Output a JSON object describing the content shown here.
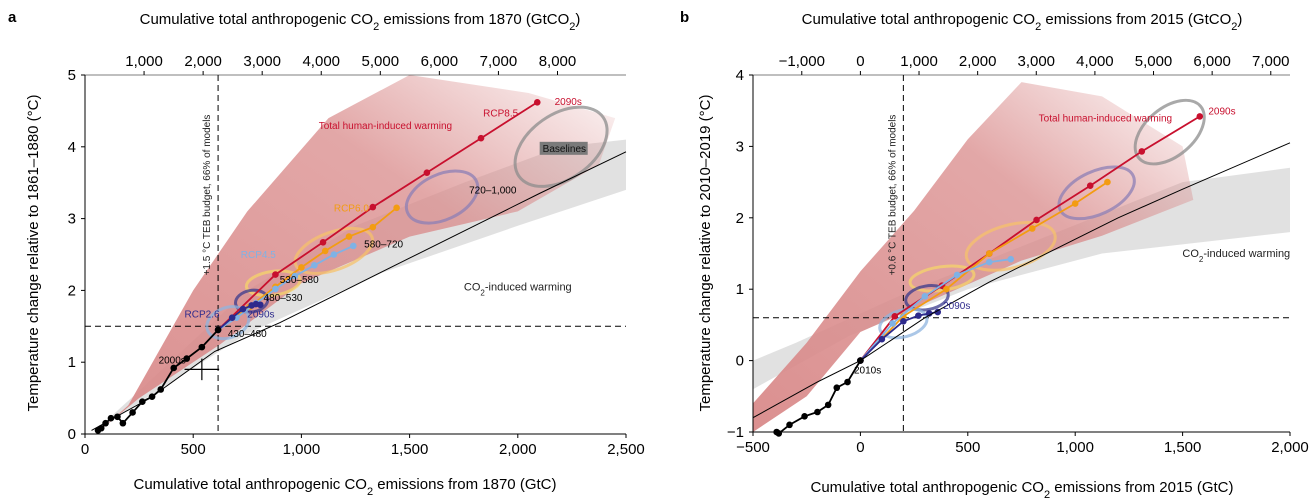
{
  "colors": {
    "rcp85": "#c8102e",
    "rcp60": "#f39c12",
    "rcp45": "#7fb2e5",
    "rcp26": "#2e2a8c",
    "hist": "#000000",
    "human_band": "#d98a8a",
    "co2_band": "#d9d9d9",
    "baseline_ellipse": "#8c8c8c",
    "ellipse_720_1000": "#8c7fb5",
    "ellipse_580_720": "#f5c26b",
    "ellipse_530_580": "#f6d46a",
    "ellipse_480_530": "#3a3a8c",
    "ellipse_430_480": "#8fb4df"
  },
  "chart_data": [
    {
      "type": "line",
      "panel": "a",
      "xlabel_top": "Cumulative total anthropogenic CO2 emissions from 1870 (GtCO2)",
      "xlabel_bottom": "Cumulative total anthropogenic CO2 emissions from 1870 (GtC)",
      "ylabel": "Temperature change relative to 1861–1880 (°C)",
      "xlim": [
        0,
        2500
      ],
      "ylim": [
        0,
        5
      ],
      "x_ticks": [
        0,
        500,
        1000,
        1500,
        2000,
        2500
      ],
      "x_tick_labels": [
        "0",
        "500",
        "1,000",
        "1,500",
        "2,000",
        "2,500"
      ],
      "y_ticks": [
        0,
        1,
        2,
        3,
        4,
        5
      ],
      "y_tick_labels": [
        "0",
        "1",
        "2",
        "3",
        "4",
        "5"
      ],
      "top_ticks_gtco2": [
        1000,
        2000,
        3000,
        4000,
        5000,
        6000,
        7000,
        8000
      ],
      "top_tick_labels": [
        "1,000",
        "2,000",
        "3,000",
        "4,000",
        "5,000",
        "6,000",
        "7,000",
        "8,000"
      ],
      "vline_x": 615,
      "vline_label": "+1.5 °C TEB budget, 66% of models",
      "hline_y": 1.5,
      "series": [
        {
          "name": "RCP8.5",
          "color_key": "rcp85",
          "x": [
            615,
            880,
            1100,
            1330,
            1580,
            1830,
            2090
          ],
          "y": [
            1.45,
            2.22,
            2.67,
            3.16,
            3.64,
            4.12,
            4.62
          ]
        },
        {
          "name": "RCP6.0",
          "color_key": "rcp60",
          "x": [
            615,
            760,
            880,
            1000,
            1110,
            1220,
            1330,
            1440
          ],
          "y": [
            1.45,
            1.77,
            2.05,
            2.32,
            2.55,
            2.75,
            2.88,
            3.15
          ]
        },
        {
          "name": "RCP4.5",
          "color_key": "rcp45",
          "x": [
            615,
            700,
            790,
            880,
            970,
            1060,
            1150,
            1240
          ],
          "y": [
            1.45,
            1.62,
            1.82,
            2.02,
            2.2,
            2.35,
            2.5,
            2.62
          ]
        },
        {
          "name": "RCP2.6",
          "color_key": "rcp26",
          "x": [
            615,
            680,
            730,
            770,
            790,
            810
          ],
          "y": [
            1.45,
            1.62,
            1.74,
            1.79,
            1.81,
            1.8
          ]
        },
        {
          "name": "Historical",
          "color_key": "hist",
          "x": [
            60,
            75,
            95,
            120,
            150,
            175,
            220,
            265,
            310,
            350,
            410,
            470,
            540,
            615
          ],
          "y": [
            0.05,
            0.08,
            0.15,
            0.22,
            0.24,
            0.15,
            0.3,
            0.45,
            0.52,
            0.62,
            0.92,
            1.05,
            1.21,
            1.45
          ]
        },
        {
          "name": "CO2-induced",
          "color_key": "hist",
          "x": [
            30,
            300,
            600,
            900,
            1200,
            1500,
            1800,
            2100,
            2500
          ],
          "y": [
            0.05,
            0.5,
            1.15,
            1.55,
            2.0,
            2.45,
            2.9,
            3.35,
            3.93
          ]
        }
      ],
      "cross": {
        "x": 540,
        "y": 0.9,
        "dx": 80,
        "dy": 0.15
      },
      "annotations": [
        {
          "key": "total_human",
          "text": "Total human-induced warming",
          "x": 1080,
          "y": 4.25,
          "color_key": "rcp85"
        },
        {
          "key": "rcp85",
          "text": "RCP8.5",
          "x": 1840,
          "y": 4.42,
          "color_key": "rcp85"
        },
        {
          "key": "d2090_85",
          "text": "2090s",
          "x": 2170,
          "y": 4.58,
          "color_key": "rcp85"
        },
        {
          "key": "baselines",
          "text": "Baselines",
          "x": 2115,
          "y": 3.93,
          "color_key": "hist"
        },
        {
          "key": "e720",
          "text": "720–1,000",
          "x": 1775,
          "y": 3.35,
          "color_key": "hist"
        },
        {
          "key": "rcp60",
          "text": "RCP6.0",
          "x": 1150,
          "y": 3.1,
          "color_key": "rcp60"
        },
        {
          "key": "e580",
          "text": "580–720",
          "x": 1290,
          "y": 2.6,
          "color_key": "hist"
        },
        {
          "key": "rcp45",
          "text": "RCP4.5",
          "x": 720,
          "y": 2.45,
          "color_key": "rcp45"
        },
        {
          "key": "e530",
          "text": "530–580",
          "x": 900,
          "y": 2.1,
          "color_key": "hist"
        },
        {
          "key": "co2ind",
          "text": "CO2-induced warming",
          "x": 2000,
          "y": 2.0,
          "color_key": "hist"
        },
        {
          "key": "e480",
          "text": "480–530",
          "x": 825,
          "y": 1.85,
          "color_key": "hist"
        },
        {
          "key": "rcp26",
          "text": "RCP2.6",
          "x": 460,
          "y": 1.62,
          "color_key": "rcp26"
        },
        {
          "key": "d2090_26",
          "text": "2090s",
          "x": 750,
          "y": 1.62,
          "color_key": "rcp26"
        },
        {
          "key": "e430",
          "text": "430–480",
          "x": 660,
          "y": 1.35,
          "color_key": "hist"
        },
        {
          "key": "d2000",
          "text": "2000s",
          "x": 340,
          "y": 0.98,
          "color_key": "hist"
        }
      ]
    },
    {
      "type": "line",
      "panel": "b",
      "xlabel_top": "Cumulative total anthropogenic CO2 emissions from 2015 (GtCO2)",
      "xlabel_bottom": "Cumulative total anthropogenic CO2 emissions from 2015 (GtC)",
      "ylabel": "Temperature change relative to 2010–2019 (°C)",
      "xlim": [
        -500,
        2000
      ],
      "ylim": [
        -1,
        4
      ],
      "x_ticks": [
        -500,
        0,
        500,
        1000,
        1500,
        2000
      ],
      "x_tick_labels": [
        "−500",
        "0",
        "500",
        "1,000",
        "1,500",
        "2,000"
      ],
      "y_ticks": [
        -1,
        0,
        1,
        2,
        3,
        4
      ],
      "y_tick_labels": [
        "−1",
        "0",
        "1",
        "2",
        "3",
        "4"
      ],
      "top_ticks_gtco2": [
        -1000,
        0,
        1000,
        2000,
        3000,
        4000,
        5000,
        6000,
        7000
      ],
      "top_tick_labels": [
        "−1,000",
        "0",
        "1,000",
        "2,000",
        "3,000",
        "4,000",
        "5,000",
        "6,000",
        "7,000"
      ],
      "vline_x": 200,
      "vline_label": "+0.6 °C TEB budget, 66% of models",
      "hline_y": 0.6,
      "series": [
        {
          "name": "RCP8.5",
          "color_key": "rcp85",
          "x": [
            0,
            160,
            380,
            600,
            820,
            1070,
            1310,
            1580
          ],
          "y": [
            0,
            0.62,
            1.05,
            1.5,
            1.97,
            2.45,
            2.93,
            3.42
          ]
        },
        {
          "name": "RCP6.0",
          "color_key": "rcp60",
          "x": [
            0,
            200,
            400,
            600,
            800,
            1000,
            1150
          ],
          "y": [
            0,
            0.62,
            1.0,
            1.5,
            1.85,
            2.2,
            2.5
          ]
        },
        {
          "name": "RCP4.5",
          "color_key": "rcp45",
          "x": [
            0,
            150,
            300,
            450,
            600,
            700
          ],
          "y": [
            0,
            0.52,
            0.9,
            1.2,
            1.38,
            1.42
          ]
        },
        {
          "name": "RCP2.6",
          "color_key": "rcp26",
          "x": [
            0,
            100,
            200,
            270,
            320,
            360
          ],
          "y": [
            0,
            0.3,
            0.55,
            0.63,
            0.66,
            0.68
          ]
        },
        {
          "name": "Historical",
          "color_key": "hist",
          "x": [
            -390,
            -380,
            -330,
            -260,
            -200,
            -150,
            -110,
            -60,
            0
          ],
          "y": [
            -1.0,
            -1.02,
            -0.9,
            -0.78,
            -0.72,
            -0.62,
            -0.38,
            -0.3,
            0
          ]
        },
        {
          "name": "CO2-induced",
          "color_key": "hist",
          "x": [
            -500,
            -200,
            0,
            300,
            600,
            900,
            1200,
            1500,
            2000
          ],
          "y": [
            -0.8,
            -0.3,
            0,
            0.6,
            1.1,
            1.55,
            2.0,
            2.4,
            3.05
          ]
        }
      ],
      "annotations": [
        {
          "key": "total_human",
          "text": "Total human-induced warming",
          "x": 830,
          "y": 3.35,
          "color_key": "rcp85"
        },
        {
          "key": "d2090_85",
          "text": "2090s",
          "x": 1620,
          "y": 3.45,
          "color_key": "rcp85"
        },
        {
          "key": "co2ind",
          "text": "CO2-induced warming",
          "x": 1750,
          "y": 1.45,
          "color_key": "hist"
        },
        {
          "key": "d2090_26",
          "text": "2090s",
          "x": 385,
          "y": 0.72,
          "color_key": "rcp26"
        },
        {
          "key": "d2010",
          "text": "2010s",
          "x": -30,
          "y": -0.18,
          "color_key": "hist"
        }
      ]
    }
  ]
}
